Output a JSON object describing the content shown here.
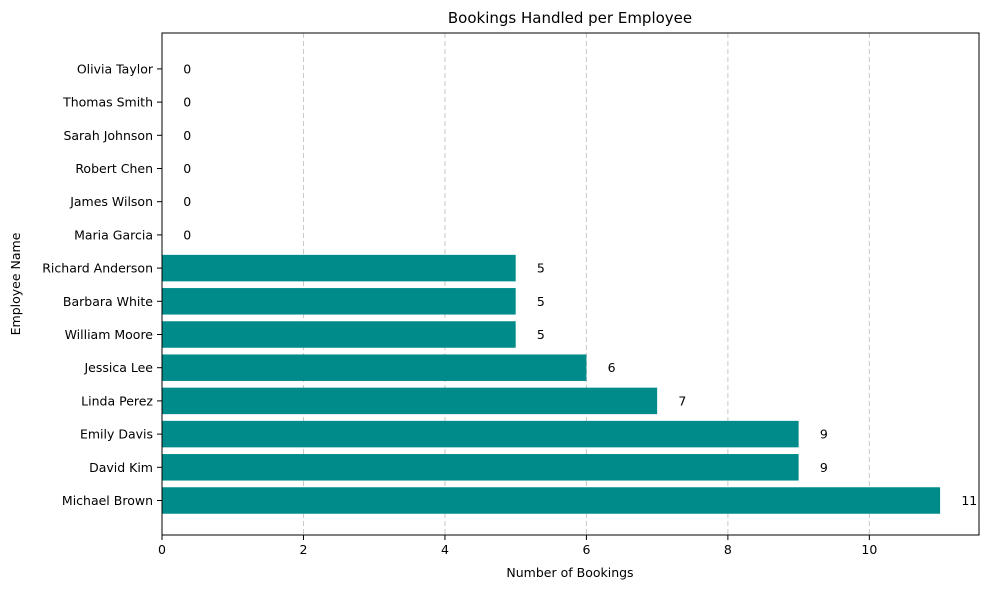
{
  "chart_data": {
    "type": "bar",
    "orientation": "horizontal",
    "title": "Bookings Handled per Employee",
    "xlabel": "Number of Bookings",
    "ylabel": "Employee Name",
    "categories": [
      "Michael Brown",
      "David Kim",
      "Emily Davis",
      "Linda Perez",
      "Jessica Lee",
      "William Moore",
      "Barbara White",
      "Richard Anderson",
      "Maria Garcia",
      "James Wilson",
      "Robert Chen",
      "Sarah Johnson",
      "Thomas Smith",
      "Olivia Taylor"
    ],
    "values": [
      11,
      9,
      9,
      7,
      6,
      5,
      5,
      5,
      0,
      0,
      0,
      0,
      0,
      0
    ],
    "data_labels": [
      "11",
      "9",
      "9",
      "7",
      "6",
      "5",
      "5",
      "5",
      "0",
      "0",
      "0",
      "0",
      "0",
      "0"
    ],
    "xlim": [
      0,
      11.55
    ],
    "xticks": [
      0,
      2,
      4,
      6,
      8,
      10
    ],
    "xtick_labels": [
      "0",
      "2",
      "4",
      "6",
      "8",
      "10"
    ],
    "grid": "x-axis dashed",
    "legend": "none",
    "bar_color": "#008b8b"
  }
}
